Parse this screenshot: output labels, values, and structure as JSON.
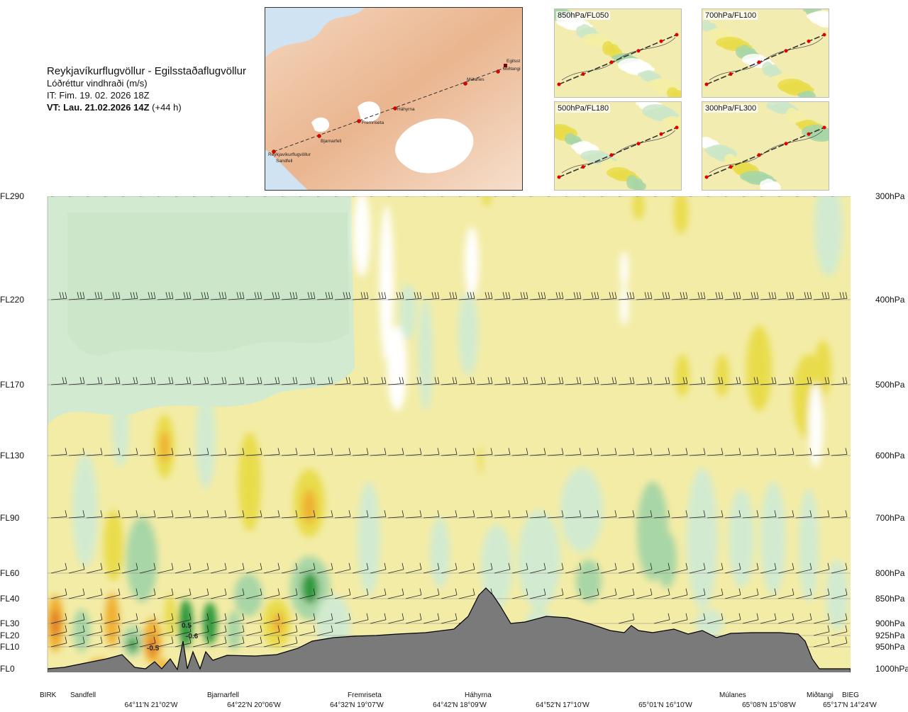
{
  "header": {
    "route": "Reykjavíkurflugvöllur - Egilsstaðaflugvöllur",
    "variable": "Lóðréttur vindhraði (m/s)",
    "issue_time": "IT: Fim. 19. 02. 2026 18Z",
    "valid_time_bold": "VT: Lau. 21.02.2026 14Z",
    "valid_offset": "(+44 h)"
  },
  "map": {
    "places": [
      "Reykjavíkurflugvöllur",
      "Sandfell",
      "Bjarnarfell",
      "Fremriseta",
      "Háhyrna",
      "Múlanes",
      "Egilsst",
      "Miðtangi"
    ]
  },
  "thumbnails": [
    {
      "label": "850hPa/FL050"
    },
    {
      "label": "700hPa/FL100"
    },
    {
      "label": "500hPa/FL180"
    },
    {
      "label": "300hPa/FL300"
    }
  ],
  "chart_data": {
    "type": "heatmap",
    "title": "Lóðréttur vindhraði (m/s)",
    "left_axis_labels": [
      "FL290",
      "FL220",
      "FL170",
      "FL130",
      "FL90",
      "FL60",
      "FL40",
      "FL30",
      "FL20",
      "FL10",
      "FL0"
    ],
    "right_axis_labels": [
      "300hPa",
      "400hPa",
      "500hPa",
      "600hPa",
      "700hPa",
      "800hPa",
      "850hPa",
      "900hPa",
      "925hPa",
      "950hPa",
      "1000hPa"
    ],
    "pressure_levels_hpa": [
      300,
      400,
      500,
      600,
      700,
      800,
      850,
      900,
      925,
      950,
      1000
    ],
    "waypoints": [
      "BIRK",
      "Sandfell",
      "Bjarnarfell",
      "Fremriseta",
      "Háhyrna",
      "Múlanes",
      "Miðtangi",
      "BIEG"
    ],
    "coordinates": [
      "64°11'N 21°02'W",
      "64°22'N 20°06'W",
      "64°32'N 19°07'W",
      "64°42'N 18°09'W",
      "64°52'N 17°10'W",
      "65°01'N 16°10'W",
      "65°08'N 15°08'W",
      "65°17'N 14°24'W"
    ],
    "contour_labels": [
      "-0.5",
      "-0.6",
      "0.5"
    ],
    "colors": {
      "downdraft_light": "#d2ebd0",
      "downdraft_mid": "#a8d6a6",
      "downdraft_strong": "#2f9a3c",
      "updraft_light": "#f5eea6",
      "updraft_mid": "#e9dc4b",
      "updraft_strong": "#f0b030",
      "updraft_max": "#e07a2a",
      "terrain": "#7a7a7a"
    }
  }
}
